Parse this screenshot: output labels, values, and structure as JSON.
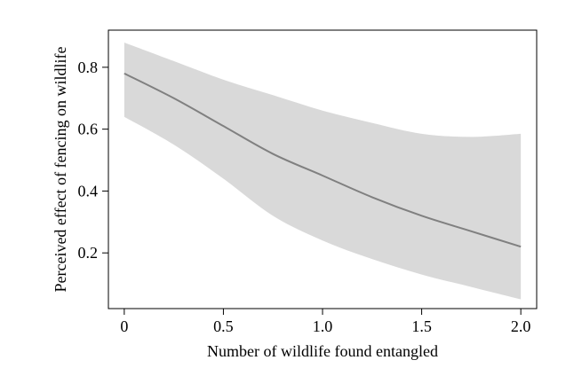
{
  "chart_data": {
    "type": "line",
    "title": "",
    "xlabel": "Number of wildlife found entangled",
    "ylabel": "Perceived effect of fencing on wildlife",
    "xlim": [
      -0.08,
      2.08
    ],
    "ylim": [
      0.02,
      0.92
    ],
    "x_ticks": [
      0,
      0.5,
      1.0,
      1.5,
      2.0
    ],
    "x_tick_labels": [
      "0",
      "0.5",
      "1.0",
      "1.5",
      "2.0"
    ],
    "y_ticks": [
      0.2,
      0.4,
      0.6,
      0.8
    ],
    "y_tick_labels": [
      "0.2",
      "0.4",
      "0.6",
      "0.8"
    ],
    "grid": false,
    "line_color": "#808080",
    "band_color": "#d9d9d9",
    "series": [
      {
        "x": [
          0,
          0.25,
          0.5,
          0.75,
          1.0,
          1.25,
          1.5,
          1.75,
          2.0
        ],
        "y": [
          0.78,
          0.7,
          0.61,
          0.52,
          0.45,
          0.38,
          0.32,
          0.27,
          0.22
        ],
        "lower": [
          0.64,
          0.55,
          0.44,
          0.32,
          0.24,
          0.18,
          0.13,
          0.09,
          0.05
        ],
        "upper": [
          0.88,
          0.82,
          0.76,
          0.71,
          0.66,
          0.62,
          0.585,
          0.575,
          0.585
        ]
      }
    ]
  }
}
